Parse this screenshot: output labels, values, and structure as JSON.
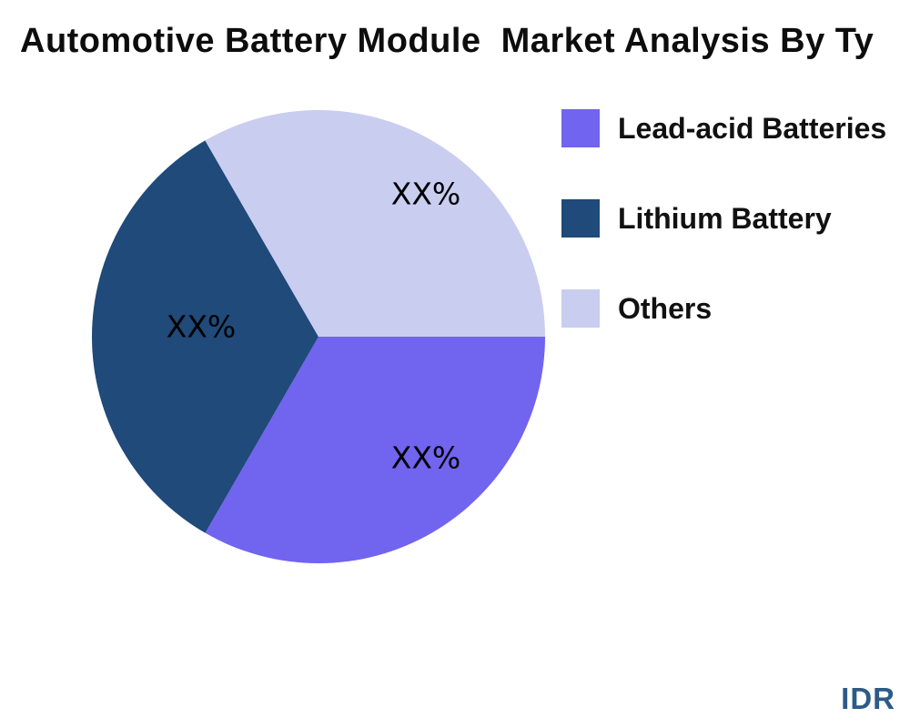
{
  "title": "Automotive Battery Module  Market Analysis By Ty",
  "watermark": "IDR",
  "colors": {
    "lead_acid": "#7164EF",
    "lithium": "#1F4A7A",
    "others": "#C9CDF0",
    "watermark_text": "#2D5A87",
    "title_text": "#0D0D0D",
    "background": "#FFFFFF"
  },
  "legend": {
    "items": [
      {
        "label": "Lead-acid Batteries",
        "color": "#7164EF"
      },
      {
        "label": "Lithium Battery",
        "color": "#1F4A7A"
      },
      {
        "label": "Others",
        "color": "#C9CDF0"
      }
    ]
  },
  "chart_data": {
    "type": "pie",
    "title": "Automotive Battery Module  Market Analysis By Ty",
    "categories": [
      "Lead-acid Batteries",
      "Lithium Battery",
      "Others"
    ],
    "values": [
      33.33,
      33.33,
      33.34
    ],
    "slice_labels": [
      "XX%",
      "XX%",
      "XX%"
    ],
    "colors": [
      "#7164EF",
      "#1F4A7A",
      "#C9CDF0"
    ],
    "start_angle_deg": 0,
    "direction": "clockwise",
    "legend_position": "right",
    "labels_inside": true
  }
}
